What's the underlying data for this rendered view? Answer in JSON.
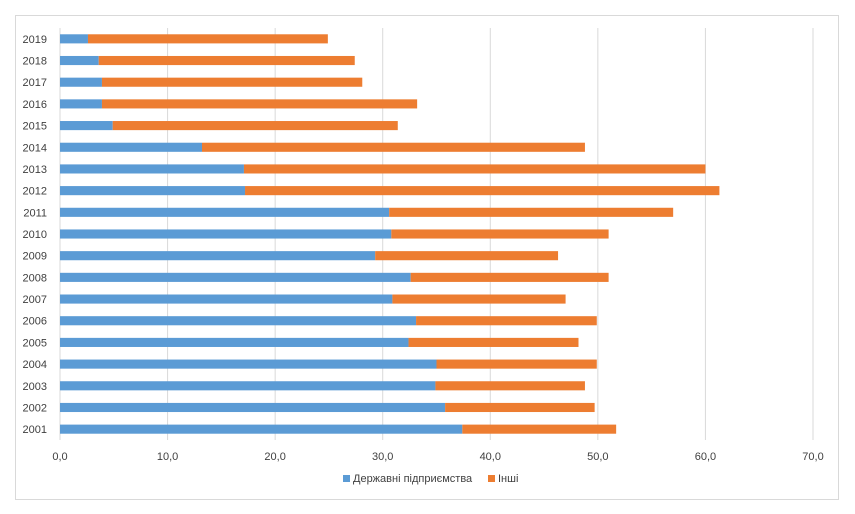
{
  "chart_data": {
    "type": "bar",
    "orientation": "horizontal",
    "stacked": true,
    "categories": [
      "2001",
      "2002",
      "2003",
      "2004",
      "2005",
      "2006",
      "2007",
      "2008",
      "2009",
      "2010",
      "2011",
      "2012",
      "2013",
      "2014",
      "2015",
      "2016",
      "2017",
      "2018",
      "2019"
    ],
    "series": [
      {
        "name": "Державні підприємства",
        "color": "#5b9bd5",
        "values": [
          37.4,
          35.8,
          34.9,
          35.0,
          32.4,
          33.1,
          30.9,
          32.6,
          29.3,
          30.8,
          30.6,
          17.2,
          17.1,
          13.2,
          4.9,
          3.9,
          3.9,
          3.6,
          2.6
        ]
      },
      {
        "name": "Інші",
        "color": "#ed7d31",
        "values": [
          14.3,
          13.9,
          13.9,
          14.9,
          15.8,
          16.8,
          16.1,
          18.4,
          17.0,
          20.2,
          26.4,
          44.1,
          42.9,
          35.6,
          26.5,
          29.3,
          24.2,
          23.8,
          22.3
        ]
      }
    ],
    "xlim": [
      0,
      70
    ],
    "xticks": [
      "0,0",
      "10,0",
      "20,0",
      "30,0",
      "40,0",
      "50,0",
      "60,0",
      "70,0"
    ],
    "grid": true,
    "legend": "bottom",
    "title": "",
    "xlabel": "",
    "ylabel": ""
  }
}
